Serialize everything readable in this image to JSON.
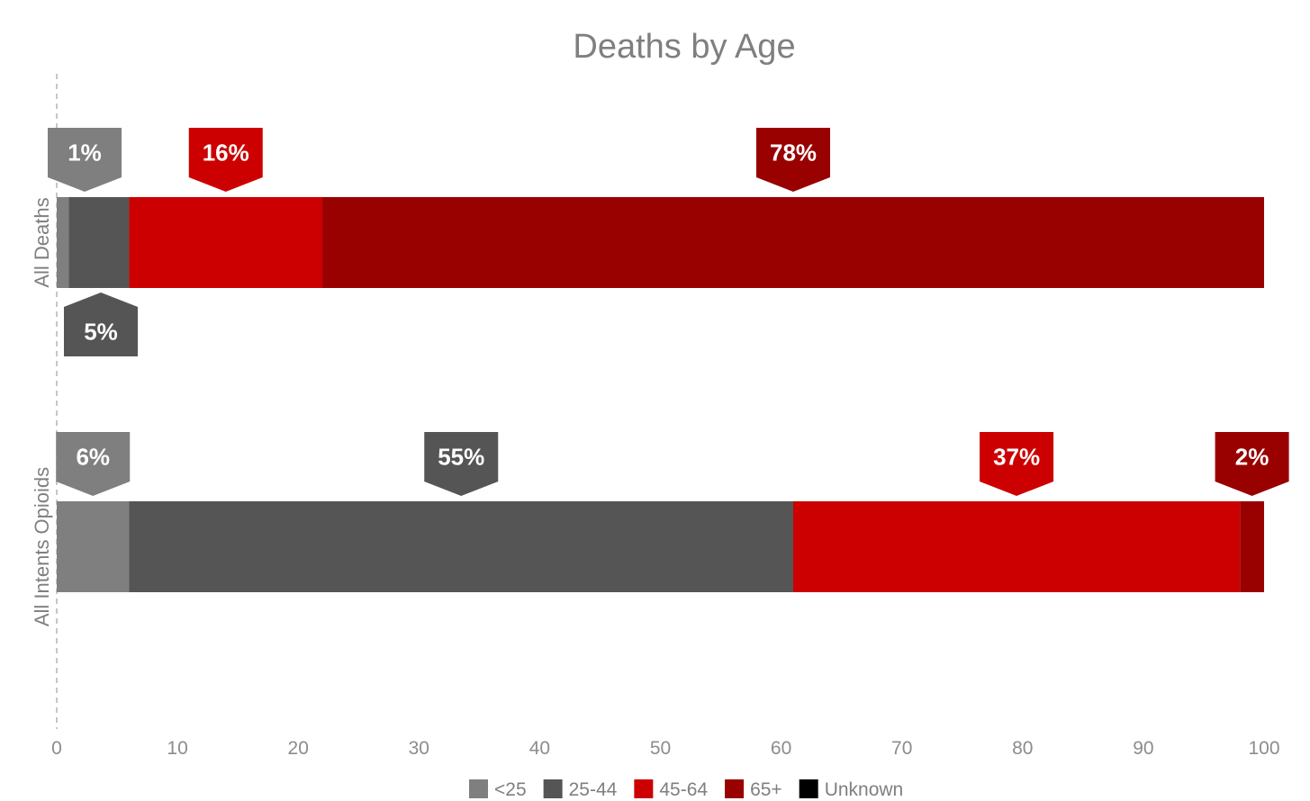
{
  "chart_data": {
    "type": "bar",
    "orientation": "horizontal",
    "stacked": true,
    "title": "Deaths by Age",
    "categories": [
      "All Deaths",
      "All Intents Opioids"
    ],
    "series": [
      {
        "name": "<25",
        "color": "#7f7f7f",
        "values": [
          1,
          6
        ],
        "labels": [
          "1%",
          "6%"
        ]
      },
      {
        "name": "25-44",
        "color": "#555555",
        "values": [
          5,
          55
        ],
        "labels": [
          "5%",
          "55%"
        ]
      },
      {
        "name": "45-64",
        "color": "#cc0000",
        "values": [
          16,
          37
        ],
        "labels": [
          "16%",
          "37%"
        ]
      },
      {
        "name": "65+",
        "color": "#990000",
        "values": [
          78,
          2
        ],
        "labels": [
          "78%",
          "2%"
        ]
      },
      {
        "name": "Unknown",
        "color": "#000000",
        "values": [
          0,
          0
        ],
        "labels": [
          "",
          ""
        ]
      }
    ],
    "xlim": [
      0,
      100
    ],
    "xticks": [
      "0",
      "10",
      "20",
      "30",
      "40",
      "50",
      "60",
      "70",
      "80",
      "90",
      "100"
    ],
    "grid": false,
    "legend": "bottom"
  }
}
